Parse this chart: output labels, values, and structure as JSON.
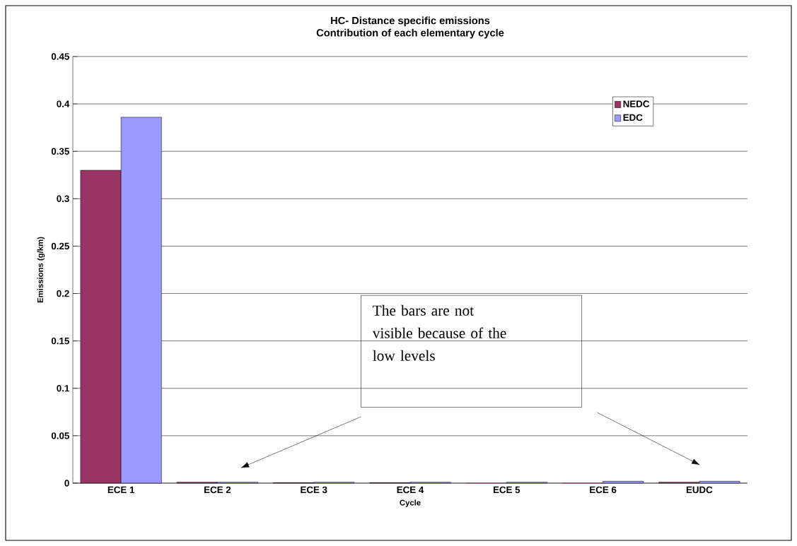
{
  "chart_data": {
    "type": "bar",
    "title": "HC- Distance specific emissions",
    "subtitle": "Contribution of each elementary cycle",
    "xlabel": "Cycle",
    "ylabel": "Emissions (g/km)",
    "categories": [
      "ECE 1",
      "ECE 2",
      "ECE 3",
      "ECE 4",
      "ECE 5",
      "ECE 6",
      "EUDC"
    ],
    "series": [
      {
        "name": "NEDC",
        "color": "#993366",
        "values": [
          0.33,
          0.001,
          0.0005,
          0.0005,
          0,
          0,
          0.001
        ]
      },
      {
        "name": "EDC",
        "color": "#9999ff",
        "values": [
          0.386,
          0.001,
          0.001,
          0.001,
          0.001,
          0.002,
          0.002
        ]
      }
    ],
    "ylim": [
      0,
      0.45
    ],
    "yticks": [
      0,
      0.05,
      0.1,
      0.15,
      0.2,
      0.25,
      0.3,
      0.35,
      0.4,
      0.45
    ],
    "grid": "y",
    "legend": "top right",
    "annotations": [
      "The bars are not visible because of the low levels"
    ]
  }
}
